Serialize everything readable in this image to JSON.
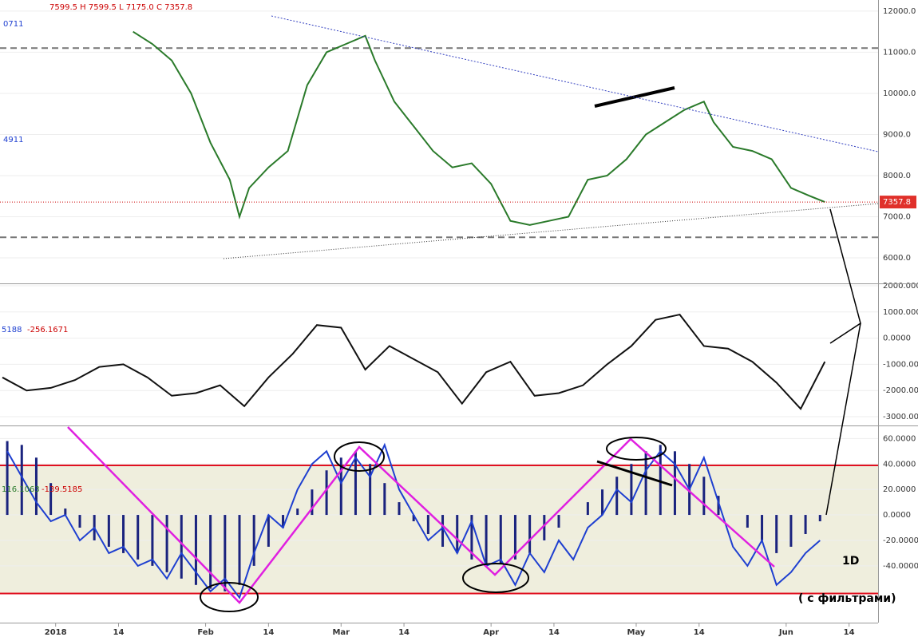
{
  "chart_data": [
    {
      "type": "line",
      "header": "7599.5 H 7599.5 L 7175.0 C 7357.8",
      "left_label": "4911",
      "left_label_top": "0711",
      "ylim": [
        5380,
        12270
      ],
      "yticks": [
        {
          "value": 6000,
          "label": "6000.0"
        },
        {
          "value": 7000,
          "label": "7000.0"
        },
        {
          "value": 8000,
          "label": "8000.0"
        },
        {
          "value": 9000,
          "label": "9000.0"
        },
        {
          "value": 10000,
          "label": "10000.0"
        },
        {
          "value": 11000,
          "label": "11000.0"
        },
        {
          "value": 12000,
          "label": "12000.0"
        }
      ],
      "hlines": [
        11100,
        6500
      ],
      "last_price": {
        "value": 7357.8,
        "label": "7357.8"
      },
      "x": [
        16,
        20,
        24,
        28,
        32,
        36,
        38,
        40,
        44,
        48,
        52,
        56,
        60,
        64,
        66,
        70,
        74,
        78,
        82,
        86,
        90,
        94,
        98,
        102,
        106,
        110,
        114,
        118,
        122,
        126,
        130,
        134,
        136,
        140,
        144,
        148,
        152,
        156,
        159
      ],
      "series": [
        {
          "type": "line",
          "color": "#2a7a2a",
          "values": [
            11500,
            11200,
            10800,
            10000,
            8800,
            7900,
            7000,
            7700,
            8200,
            8600,
            10200,
            11000,
            11200,
            11400,
            10800,
            9800,
            9200,
            8600,
            8200,
            8300,
            7800,
            6900,
            6800,
            6900,
            7000,
            7900,
            8000,
            8400,
            9000,
            9300,
            9600,
            9800,
            9300,
            8700,
            8600,
            8400,
            7700,
            7500,
            7358
          ]
        }
      ]
    },
    {
      "type": "line",
      "left_label": "5188",
      "left_label_2": "-256.1671",
      "ylim": [
        -3335,
        2061
      ],
      "yticks": [
        {
          "value": 2000,
          "label": "2000.0000"
        },
        {
          "value": 1000,
          "label": "1000.0000"
        },
        {
          "value": 0,
          "label": "0.0000"
        },
        {
          "value": -1000,
          "label": "-1000.0000"
        },
        {
          "value": -2000,
          "label": "-2000.0000"
        },
        {
          "value": -3000,
          "label": "-3000.0000"
        }
      ],
      "x": [
        -11,
        -6,
        -1,
        4,
        9,
        14,
        19,
        24,
        29,
        34,
        39,
        44,
        49,
        54,
        59,
        64,
        69,
        74,
        79,
        84,
        89,
        94,
        99,
        104,
        109,
        114,
        119,
        124,
        129,
        134,
        139,
        144,
        149,
        154,
        159
      ],
      "series": [
        {
          "type": "line",
          "color": "#111111",
          "values": [
            -1500,
            -2000,
            -1900,
            -1600,
            -1100,
            -1000,
            -1500,
            -2200,
            -2100,
            -1800,
            -2600,
            -1500,
            -600,
            500,
            400,
            -1200,
            -300,
            -800,
            -1300,
            -2500,
            -1300,
            -900,
            -2200,
            -2100,
            -1800,
            -1000,
            -300,
            700,
            900,
            -300,
            -400,
            -900,
            -1700,
            -2700,
            -900
          ]
        }
      ]
    },
    {
      "type": "combo",
      "left_label": "116.1063",
      "left_label_2": "-139.5185",
      "ylim": [
        -84.6,
        69
      ],
      "yticks": [
        {
          "value": 60,
          "label": "60.0000"
        },
        {
          "value": 40,
          "label": "40.0000"
        },
        {
          "value": 20,
          "label": "20.0000"
        },
        {
          "value": 0,
          "label": "0.0000"
        },
        {
          "value": -20,
          "label": "-20.0000"
        },
        {
          "value": -40,
          "label": "-40.0000"
        }
      ],
      "hlines": [
        38.9,
        -61.7
      ],
      "xlim": [
        -11.5,
        170
      ],
      "xticks": [
        {
          "value": 0,
          "label": "2018"
        },
        {
          "value": 13,
          "label": "14"
        },
        {
          "value": 31,
          "label": "Feb"
        },
        {
          "value": 44,
          "label": "14"
        },
        {
          "value": 59,
          "label": "Mar"
        },
        {
          "value": 72,
          "label": "14"
        },
        {
          "value": 90,
          "label": "Apr"
        },
        {
          "value": 103,
          "label": "14"
        },
        {
          "value": 120,
          "label": "May"
        },
        {
          "value": 133,
          "label": "14"
        },
        {
          "value": 151,
          "label": "Jun"
        },
        {
          "value": 164,
          "label": "14"
        }
      ],
      "x": [
        -10,
        -7,
        -4,
        -1,
        2,
        5,
        8,
        11,
        14,
        17,
        20,
        23,
        26,
        29,
        32,
        35,
        38,
        41,
        44,
        47,
        50,
        53,
        56,
        59,
        62,
        65,
        68,
        71,
        74,
        77,
        80,
        83,
        86,
        89,
        92,
        95,
        98,
        101,
        104,
        107,
        110,
        113,
        116,
        119,
        122,
        125,
        128,
        131,
        134,
        137,
        140,
        143,
        146,
        149,
        152,
        155,
        158
      ],
      "series": [
        {
          "type": "bar",
          "color": "#1a237e",
          "values": [
            58,
            55,
            45,
            25,
            5,
            -10,
            -20,
            -25,
            -30,
            -35,
            -40,
            -45,
            -50,
            -55,
            -58,
            -60,
            -55,
            -40,
            -25,
            -10,
            5,
            20,
            35,
            45,
            50,
            40,
            25,
            10,
            -5,
            -15,
            -25,
            -30,
            -35,
            -40,
            -38,
            -35,
            -30,
            -20,
            -10,
            0,
            10,
            20,
            30,
            40,
            50,
            55,
            50,
            40,
            30,
            15,
            0,
            -10,
            -20,
            -30,
            -25,
            -15,
            -5
          ]
        },
        {
          "type": "line",
          "color": "#1e3fd0",
          "values": [
            50,
            30,
            10,
            -5,
            0,
            -20,
            -10,
            -30,
            -25,
            -40,
            -35,
            -50,
            -30,
            -45,
            -60,
            -50,
            -65,
            -30,
            0,
            -10,
            20,
            40,
            50,
            25,
            45,
            30,
            55,
            20,
            0,
            -20,
            -10,
            -30,
            -5,
            -40,
            -35,
            -55,
            -30,
            -45,
            -20,
            -35,
            -10,
            0,
            20,
            10,
            35,
            50,
            40,
            20,
            45,
            10,
            -25,
            -40,
            -20,
            -55,
            -45,
            -30,
            -20
          ]
        }
      ]
    }
  ],
  "annotations": {
    "timeframe": "1D",
    "note": "( с фильтрами)"
  }
}
